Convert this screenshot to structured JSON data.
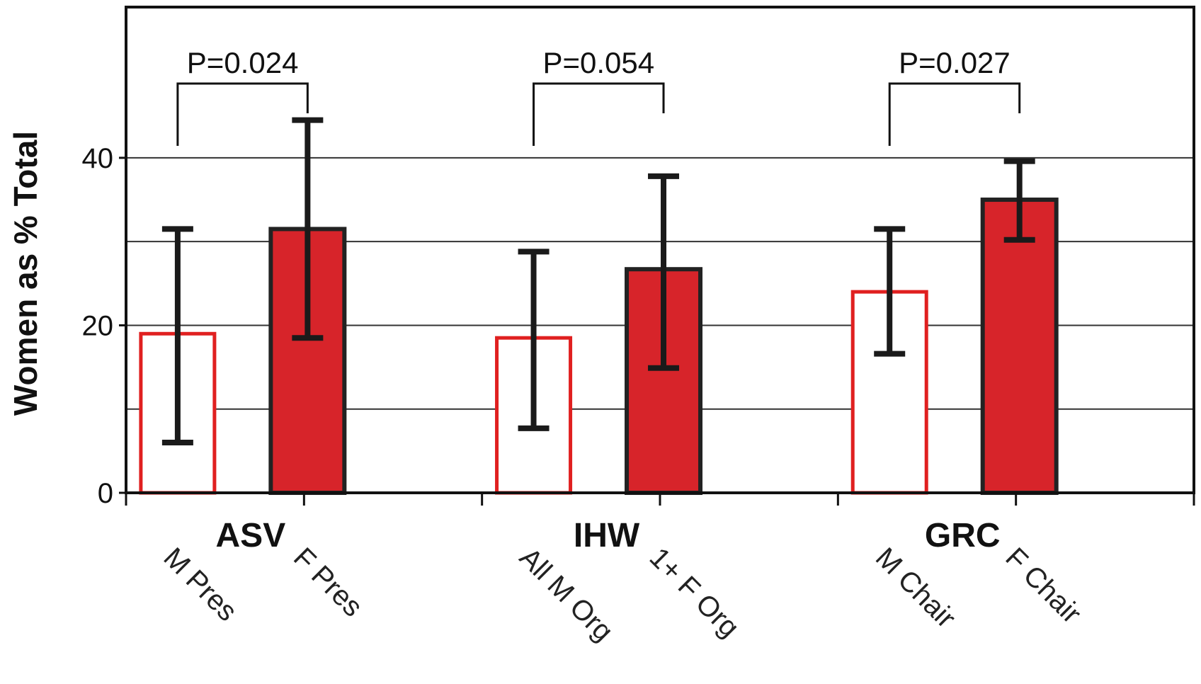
{
  "chart_data": {
    "type": "bar",
    "ylabel": "Women as % Total",
    "ylim": [
      0,
      58
    ],
    "yticks": [
      0,
      20,
      40
    ],
    "gridlines": [
      10,
      20,
      30,
      40
    ],
    "groups": [
      {
        "name": "ASV",
        "bars": [
          {
            "label": "M Pres",
            "value": 19,
            "err_low": 6,
            "err_high": 31.5,
            "filled": false
          },
          {
            "label": "F Pres",
            "value": 31.5,
            "err_low": 18.5,
            "err_high": 44.5,
            "filled": true
          }
        ],
        "pvalue": "P=0.024"
      },
      {
        "name": "IHW",
        "bars": [
          {
            "label": "All M Org",
            "value": 18.5,
            "err_low": 7.7,
            "err_high": 28.8,
            "filled": false
          },
          {
            "label": "1+ F Org",
            "value": 26.7,
            "err_low": 14.9,
            "err_high": 37.8,
            "filled": true
          }
        ],
        "pvalue": "P=0.054"
      },
      {
        "name": "GRC",
        "bars": [
          {
            "label": "M Chair",
            "value": 24,
            "err_low": 16.6,
            "err_high": 31.5,
            "filled": false
          },
          {
            "label": "F Chair",
            "value": 35,
            "err_low": 30.2,
            "err_high": 39.6,
            "filled": true
          }
        ],
        "pvalue": "P=0.027"
      }
    ],
    "colors": {
      "bar_fill": "#d7242a",
      "open_outline": "#e02020",
      "filled_outline": "#222222",
      "error": "#1a1a1a",
      "grid": "#333333"
    }
  }
}
